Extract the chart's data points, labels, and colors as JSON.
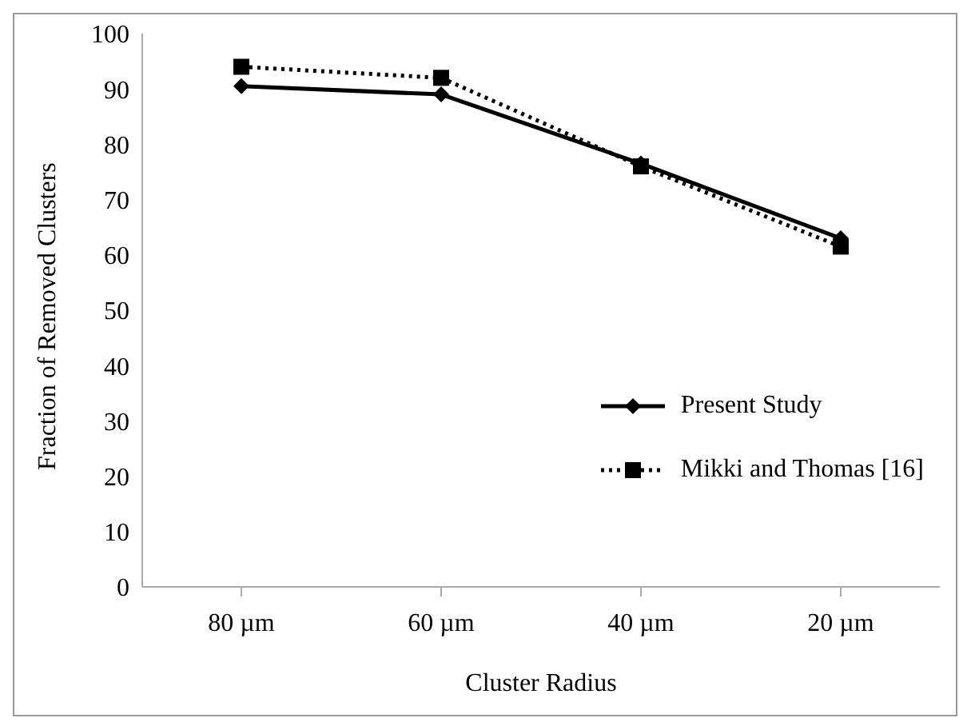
{
  "chart_data": {
    "type": "line",
    "xlabel": "Cluster Radius",
    "ylabel": "Fraction of Removed Clusters",
    "categories": [
      "80 µm",
      "60 µm",
      "40 µm",
      "20 µm"
    ],
    "series": [
      {
        "name": "Present Study",
        "color": "#000000",
        "values": [
          90.5,
          89,
          76.5,
          63
        ],
        "marker": "diamond",
        "line_style": "solid"
      },
      {
        "name": "Mikki and Thomas [16]",
        "color": "#000000",
        "values": [
          94,
          92,
          76,
          61.5
        ],
        "marker": "square",
        "line_style": "dotted"
      }
    ],
    "ylim": [
      0,
      100
    ],
    "yticks": [
      0,
      10,
      20,
      30,
      40,
      50,
      60,
      70,
      80,
      90,
      100
    ],
    "grid": false,
    "legend": "right"
  }
}
